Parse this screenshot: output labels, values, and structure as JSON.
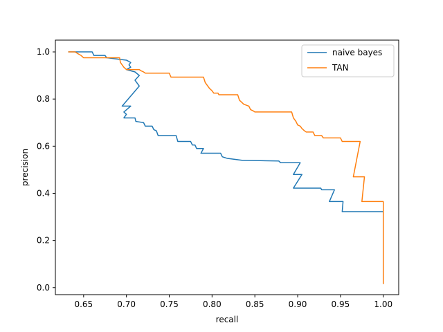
{
  "chart_data": {
    "type": "line",
    "title": "",
    "xlabel": "recall",
    "ylabel": "precision",
    "xlim": [
      0.617,
      1.018
    ],
    "ylim": [
      -0.03,
      1.05
    ],
    "xticks": [
      0.65,
      0.7,
      0.75,
      0.8,
      0.85,
      0.9,
      0.95,
      1.0
    ],
    "xtick_labels": [
      "0.65",
      "0.70",
      "0.75",
      "0.80",
      "0.85",
      "0.90",
      "0.95",
      "1.00"
    ],
    "yticks": [
      0.0,
      0.2,
      0.4,
      0.6,
      0.8,
      1.0
    ],
    "ytick_labels": [
      "0.0",
      "0.2",
      "0.4",
      "0.6",
      "0.8",
      "1.0"
    ],
    "grid": false,
    "legend": "top-right",
    "series": [
      {
        "name": "naive bayes",
        "color": "#1f77b4",
        "x": [
          0.632,
          0.66,
          0.662,
          0.675,
          0.677,
          0.7,
          0.705,
          0.703,
          0.705,
          0.7,
          0.71,
          0.715,
          0.71,
          0.715,
          0.695,
          0.705,
          0.697,
          0.7,
          0.697,
          0.71,
          0.711,
          0.72,
          0.722,
          0.73,
          0.732,
          0.735,
          0.737,
          0.758,
          0.76,
          0.775,
          0.777,
          0.78,
          0.782,
          0.79,
          0.787,
          0.81,
          0.812,
          0.818,
          0.835,
          0.837,
          0.878,
          0.88,
          0.903,
          0.895,
          0.905,
          0.895,
          0.927,
          0.928,
          0.943,
          0.937,
          0.953,
          0.952,
          1.0,
          1.0,
          1.0,
          1.0
        ],
        "y": [
          1.0,
          1.0,
          0.985,
          0.985,
          0.975,
          0.965,
          0.955,
          0.945,
          0.935,
          0.925,
          0.915,
          0.9,
          0.88,
          0.855,
          0.77,
          0.77,
          0.745,
          0.735,
          0.72,
          0.72,
          0.705,
          0.7,
          0.685,
          0.685,
          0.67,
          0.665,
          0.645,
          0.645,
          0.62,
          0.62,
          0.605,
          0.605,
          0.59,
          0.59,
          0.57,
          0.57,
          0.555,
          0.548,
          0.54,
          0.54,
          0.537,
          0.53,
          0.53,
          0.48,
          0.48,
          0.422,
          0.422,
          0.415,
          0.415,
          0.365,
          0.365,
          0.322,
          0.322,
          0.2,
          0.1,
          0.015
        ]
      },
      {
        "name": "TAN",
        "color": "#ff7f0e",
        "x": [
          0.632,
          0.64,
          0.643,
          0.647,
          0.65,
          0.692,
          0.693,
          0.695,
          0.697,
          0.7,
          0.715,
          0.717,
          0.72,
          0.722,
          0.75,
          0.752,
          0.79,
          0.792,
          0.795,
          0.797,
          0.8,
          0.802,
          0.807,
          0.808,
          0.83,
          0.832,
          0.835,
          0.837,
          0.843,
          0.845,
          0.848,
          0.85,
          0.893,
          0.895,
          0.898,
          0.9,
          0.903,
          0.905,
          0.908,
          0.91,
          0.918,
          0.92,
          0.928,
          0.93,
          0.95,
          0.952,
          0.973,
          0.965,
          0.978,
          0.975,
          1.0,
          1.0,
          1.0
        ],
        "y": [
          1.0,
          1.0,
          0.993,
          0.985,
          0.975,
          0.975,
          0.955,
          0.945,
          0.935,
          0.925,
          0.925,
          0.92,
          0.915,
          0.91,
          0.91,
          0.893,
          0.893,
          0.87,
          0.855,
          0.845,
          0.835,
          0.825,
          0.825,
          0.818,
          0.818,
          0.795,
          0.785,
          0.778,
          0.77,
          0.755,
          0.75,
          0.745,
          0.745,
          0.72,
          0.705,
          0.69,
          0.685,
          0.675,
          0.665,
          0.66,
          0.66,
          0.645,
          0.645,
          0.635,
          0.635,
          0.62,
          0.62,
          0.47,
          0.47,
          0.365,
          0.365,
          0.2,
          0.015
        ]
      }
    ]
  }
}
